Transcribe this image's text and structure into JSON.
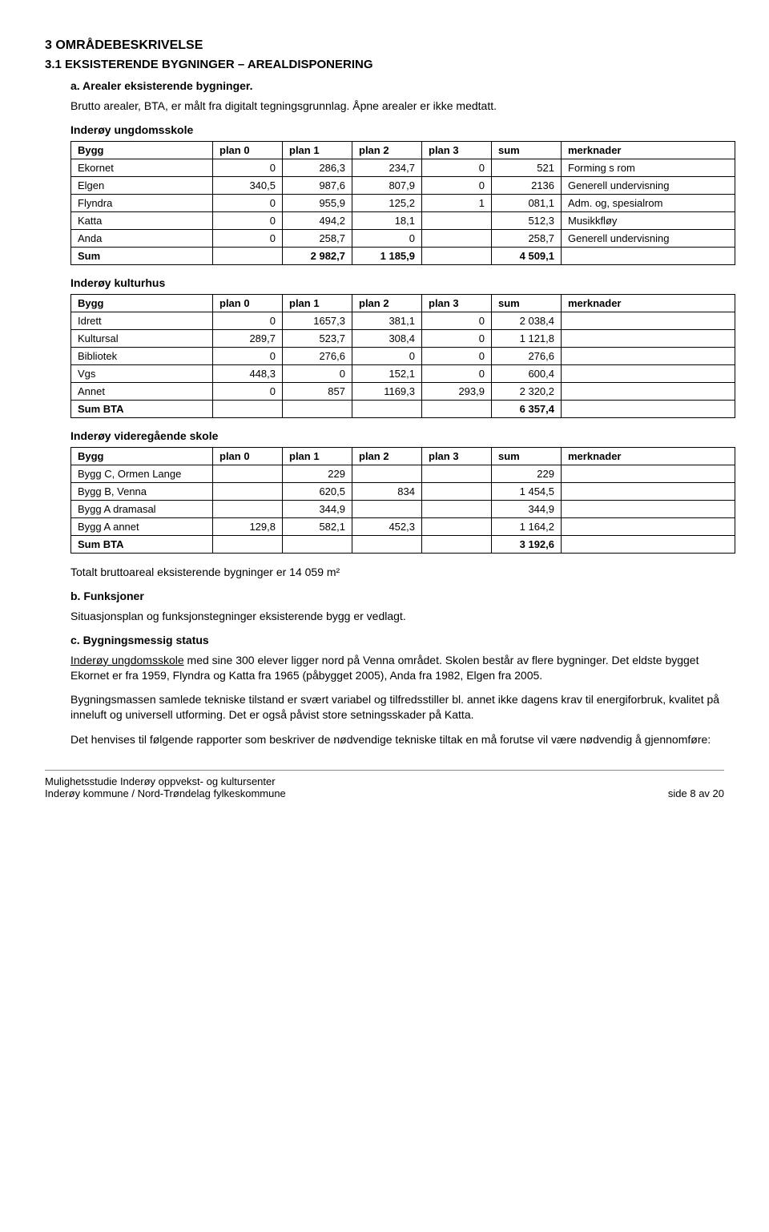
{
  "sec3": {
    "num_title": "3    OMRÅDEBESKRIVELSE",
    "sub31": "3.1   EKSISTERENDE BYGNINGER – AREALDISPONERING",
    "a_label": "a.  Arealer eksisterende bygninger.",
    "a_para": "Brutto arealer, BTA, er målt fra digitalt tegningsgrunnlag. Åpne arealer er ikke medtatt.",
    "t1_title": "Inderøy ungdomsskole",
    "t2_title": "Inderøy kulturhus",
    "t3_title": "Inderøy videregående skole",
    "total_line": "Totalt bruttoareal eksisterende bygninger er 14 059 m²",
    "b_label": "b.  Funksjoner",
    "b_para": "Situasjonsplan og funksjonstegninger eksisterende bygg er vedlagt.",
    "c_label": "c.  Bygningsmessig status",
    "c_p1a": "Inderøy ungdomsskole",
    "c_p1b": " med sine 300 elever ligger nord på Venna området. Skolen består av flere bygninger. Det eldste bygget Ekornet er fra 1959, Flyndra og Katta fra 1965 (påbygget 2005), Anda fra 1982, Elgen fra 2005.",
    "c_p2": "Bygningsmassen samlede tekniske tilstand er svært variabel og tilfredsstiller bl. annet ikke dagens krav til energiforbruk, kvalitet på inneluft og universell utforming. Det er også påvist store setningsskader på Katta.",
    "c_p3": "Det henvises til følgende rapporter som beskriver de nødvendige tekniske tiltak en må forutse vil være nødvendig å gjennomføre:"
  },
  "headers": {
    "bygg": "Bygg",
    "p0": "plan 0",
    "p1": "plan 1",
    "p2": "plan 2",
    "p3": "plan 3",
    "sum": "sum",
    "merk": "merknader"
  },
  "t1": {
    "rows": [
      {
        "b": "Ekornet",
        "p0": "0",
        "p1": "286,3",
        "p2": "234,7",
        "p3": "0",
        "s": "521",
        "m": "Forming s rom"
      },
      {
        "b": "Elgen",
        "p0": "340,5",
        "p1": "987,6",
        "p2": "807,9",
        "p3": "0",
        "s": "2136",
        "m": "Generell undervisning"
      },
      {
        "b": "Flyndra",
        "p0": "0",
        "p1": "955,9",
        "p2": "125,2",
        "p3": "1",
        "s": "081,1",
        "m": "Adm. og, spesialrom"
      },
      {
        "b": "Katta",
        "p0": "0",
        "p1": "494,2",
        "p2": "18,1",
        "p3": "",
        "s": "512,3",
        "m": "Musikkfløy"
      },
      {
        "b": "Anda",
        "p0": "0",
        "p1": "258,7",
        "p2": "0",
        "p3": "",
        "s": "258,7",
        "m": "Generell undervisning"
      },
      {
        "b": "Sum",
        "p0": "",
        "p1": "2 982,7",
        "p2": "1 185,9",
        "p3": "",
        "s": "4 509,1",
        "m": ""
      }
    ]
  },
  "t2": {
    "rows": [
      {
        "b": "Idrett",
        "p0": "0",
        "p1": "1657,3",
        "p2": "381,1",
        "p3": "0",
        "s": "2 038,4",
        "m": ""
      },
      {
        "b": "Kultursal",
        "p0": "289,7",
        "p1": "523,7",
        "p2": "308,4",
        "p3": "0",
        "s": "1 121,8",
        "m": ""
      },
      {
        "b": "Bibliotek",
        "p0": "0",
        "p1": "276,6",
        "p2": "0",
        "p3": "0",
        "s": "276,6",
        "m": ""
      },
      {
        "b": "Vgs",
        "p0": "448,3",
        "p1": "0",
        "p2": "152,1",
        "p3": "0",
        "s": "600,4",
        "m": ""
      },
      {
        "b": "Annet",
        "p0": "0",
        "p1": "857",
        "p2": "1169,3",
        "p3": "293,9",
        "s": "2 320,2",
        "m": ""
      },
      {
        "b": "Sum BTA",
        "p0": "",
        "p1": "",
        "p2": "",
        "p3": "",
        "s": "6 357,4",
        "m": ""
      }
    ]
  },
  "t3": {
    "rows": [
      {
        "b": "Bygg C, Ormen Lange",
        "p0": "",
        "p1": "229",
        "p2": "",
        "p3": "",
        "s": "229",
        "m": ""
      },
      {
        "b": "Bygg B, Venna",
        "p0": "",
        "p1": "620,5",
        "p2": "834",
        "p3": "",
        "s": "1 454,5",
        "m": ""
      },
      {
        "b": "Bygg A dramasal",
        "p0": "",
        "p1": "344,9",
        "p2": "",
        "p3": "",
        "s": "344,9",
        "m": ""
      },
      {
        "b": "Bygg A annet",
        "p0": "129,8",
        "p1": "582,1",
        "p2": "452,3",
        "p3": "",
        "s": "1 164,2",
        "m": ""
      },
      {
        "b": "Sum BTA",
        "p0": "",
        "p1": "",
        "p2": "",
        "p3": "",
        "s": "3 192,6",
        "m": ""
      }
    ]
  },
  "footer": {
    "left1": "Mulighetsstudie Inderøy oppvekst- og kultursenter",
    "left2": "Inderøy kommune / Nord-Trøndelag fylkeskommune",
    "right": "side  8 av  20"
  },
  "colwidths": {
    "bygg": 160,
    "plan": 70,
    "sum": 70,
    "merk": 200
  }
}
